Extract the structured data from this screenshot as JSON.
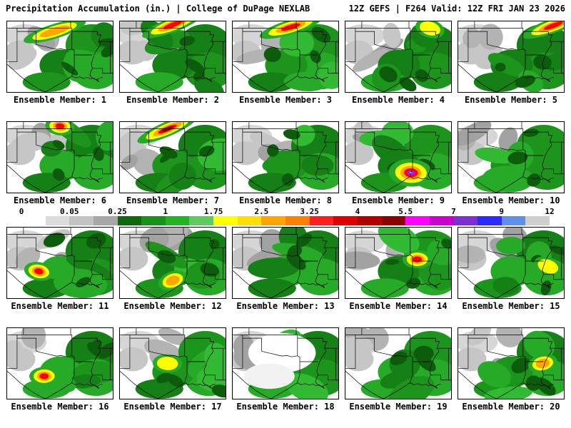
{
  "header": {
    "title_left": "Precipitation Accumulation (in.) | College of DuPage NEXLAB",
    "title_right": "12Z GEFS | F264 Valid: 12Z FRI JAN 23 2026"
  },
  "colorbar": {
    "tick_labels": [
      "0",
      "0.05",
      "0.25",
      "1",
      "1.75",
      "2.5",
      "3.25",
      "4",
      "5.5",
      "7",
      "9",
      "12"
    ],
    "segment_colors": [
      "#ffffff",
      "#dcdcdc",
      "#c3c3c3",
      "#a7a7a7",
      "#0d6b0d",
      "#189318",
      "#23b423",
      "#5fcb5f",
      "#ffff00",
      "#ffdf00",
      "#ffa500",
      "#ff7f00",
      "#ff1e1e",
      "#dc0000",
      "#b00000",
      "#8b0000",
      "#ff00ff",
      "#cc00cc",
      "#7d2fd0",
      "#2a2aff",
      "#5f8fe8",
      "#cfcfcf"
    ]
  },
  "map_colors": {
    "background": "#ffffff",
    "state_border": "#000000",
    "grays": [
      "#d6d6d6",
      "#c6c6c6",
      "#b3b3b3",
      "#a2a2a2"
    ],
    "greens": [
      "#158015",
      "#1d951d",
      "#27aa27",
      "#32bb32"
    ],
    "dark_green": "#0c5c0c",
    "yellow": "#ffff00",
    "orange": "#ffa500",
    "red": "#ff0000",
    "dark_red": "#8b0000",
    "magenta": "#ff00ff",
    "blue": "#2a2aff",
    "pale_blue": "#9bd7ff"
  },
  "panels": [
    {
      "member": 1,
      "label": "Ensemble Member: 1",
      "hotspot": {
        "fx": 0.45,
        "fy": 0.14,
        "level": 2,
        "band": true
      }
    },
    {
      "member": 2,
      "label": "Ensemble Member: 2",
      "hotspot": {
        "fx": 0.5,
        "fy": 0.05,
        "level": 3,
        "band": true
      }
    },
    {
      "member": 3,
      "label": "Ensemble Member: 3",
      "hotspot": {
        "fx": 0.55,
        "fy": 0.08,
        "level": 3,
        "band": true
      }
    },
    {
      "member": 4,
      "label": "Ensemble Member: 4",
      "hotspot": {
        "fx": 0.8,
        "fy": 0.1,
        "level": 1,
        "band": false
      }
    },
    {
      "member": 5,
      "label": "Ensemble Member: 5",
      "hotspot": {
        "fx": 0.9,
        "fy": 0.06,
        "level": 3,
        "band": true
      }
    },
    {
      "member": 6,
      "label": "Ensemble Member: 6",
      "hotspot": {
        "fx": 0.5,
        "fy": 0.06,
        "level": 3,
        "band": false
      }
    },
    {
      "member": 7,
      "label": "Ensemble Member: 7",
      "hotspot": {
        "fx": 0.45,
        "fy": 0.1,
        "level": 4,
        "band": true
      }
    },
    {
      "member": 8,
      "label": "Ensemble Member: 8",
      "hotspot": {
        "fx": 0.5,
        "fy": 0.5,
        "level": 0,
        "band": false
      }
    },
    {
      "member": 9,
      "label": "Ensemble Member: 9",
      "hotspot": {
        "fx": 0.62,
        "fy": 0.72,
        "level": 5,
        "band": false
      }
    },
    {
      "member": 10,
      "label": "Ensemble Member: 10",
      "hotspot": {
        "fx": 0.5,
        "fy": 0.5,
        "level": 0,
        "band": false
      }
    },
    {
      "member": 11,
      "label": "Ensemble Member: 11",
      "hotspot": {
        "fx": 0.3,
        "fy": 0.62,
        "level": 3,
        "band": false
      }
    },
    {
      "member": 12,
      "label": "Ensemble Member: 12",
      "hotspot": {
        "fx": 0.5,
        "fy": 0.75,
        "level": 2,
        "band": false
      }
    },
    {
      "member": 13,
      "label": "Ensemble Member: 13",
      "hotspot": {
        "fx": 0.5,
        "fy": 0.5,
        "level": 0,
        "band": false
      }
    },
    {
      "member": 14,
      "label": "Ensemble Member: 14",
      "hotspot": {
        "fx": 0.68,
        "fy": 0.45,
        "level": 3,
        "band": false
      }
    },
    {
      "member": 15,
      "label": "Ensemble Member: 15",
      "hotspot": {
        "fx": 0.85,
        "fy": 0.55,
        "level": 1,
        "band": false
      }
    },
    {
      "member": 16,
      "label": "Ensemble Member: 16",
      "hotspot": {
        "fx": 0.35,
        "fy": 0.68,
        "level": 3,
        "band": false
      }
    },
    {
      "member": 17,
      "label": "Ensemble Member: 17",
      "hotspot": {
        "fx": 0.45,
        "fy": 0.5,
        "level": 1,
        "band": false
      }
    },
    {
      "member": 18,
      "label": "Ensemble Member: 18",
      "sparse": true,
      "hotspot": {
        "fx": 0.5,
        "fy": 0.5,
        "level": 0,
        "band": false
      }
    },
    {
      "member": 19,
      "label": "Ensemble Member: 19",
      "hotspot": {
        "fx": 0.5,
        "fy": 0.5,
        "level": 0,
        "band": false
      }
    },
    {
      "member": 20,
      "label": "Ensemble Member: 20",
      "hotspot": {
        "fx": 0.8,
        "fy": 0.5,
        "level": 2,
        "band": false
      }
    }
  ]
}
